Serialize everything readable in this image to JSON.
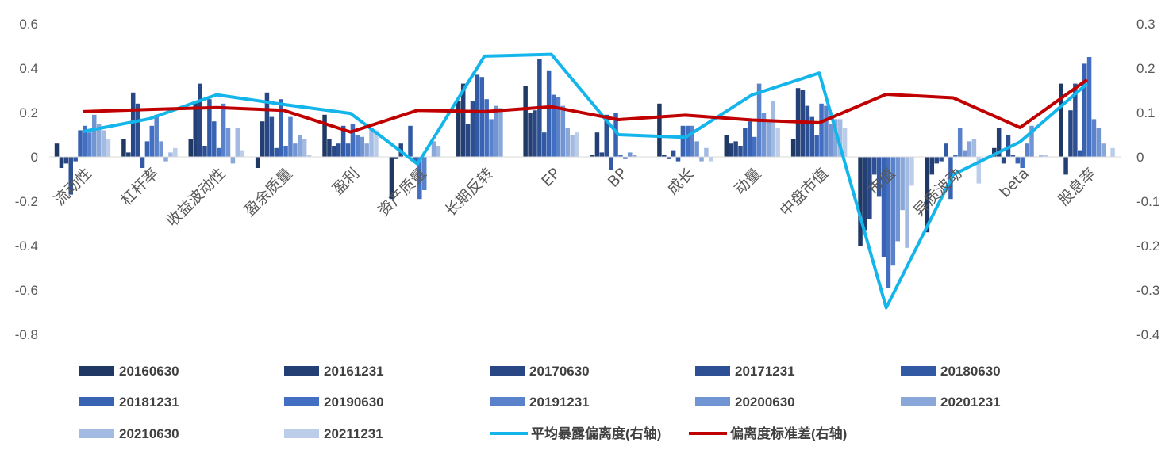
{
  "chart_data": {
    "type": "bar",
    "categories": [
      "流动性",
      "杠杆率",
      "收益波动性",
      "盈余质量",
      "盈利",
      "资产质量",
      "长期反转",
      "EP",
      "BP",
      "成长",
      "动量",
      "中盘市值",
      "市值",
      "异质波动",
      "beta",
      "股息率"
    ],
    "ylim": [
      -0.8,
      0.6
    ],
    "yticks": [
      "0.6",
      "0.4",
      "0.2",
      "0",
      "-0.2",
      "-0.4",
      "-0.6",
      "-0.8"
    ],
    "y2lim": [
      -0.4,
      0.3
    ],
    "y2ticks": [
      "0.3",
      "0.2",
      "0.1",
      "0",
      "-0.1",
      "-0.2",
      "-0.3",
      "-0.4"
    ],
    "grid": false,
    "legend_position": "bottom",
    "series": [
      {
        "name": "20160630",
        "color": "#203864",
        "values": [
          0.06,
          0.08,
          0.08,
          -0.05,
          0.19,
          -0.19,
          0.25,
          0.32,
          0.01,
          0.24,
          0.1,
          0.08,
          -0.4,
          -0.34,
          0.04,
          0.33
        ]
      },
      {
        "name": "20161231",
        "color": "#243F73",
        "values": [
          -0.05,
          0.02,
          0.25,
          0.16,
          0.08,
          -0.01,
          0.33,
          0.2,
          0.11,
          0.01,
          0.06,
          0.31,
          -0.33,
          -0.08,
          0.13,
          -0.08
        ]
      },
      {
        "name": "20170630",
        "color": "#284784",
        "values": [
          -0.03,
          0.29,
          0.33,
          0.29,
          0.05,
          0.06,
          0.15,
          0.21,
          0.02,
          -0.01,
          0.07,
          0.3,
          -0.28,
          -0.03,
          -0.03,
          0.21
        ]
      },
      {
        "name": "20171231",
        "color": "#2D5094",
        "values": [
          -0.17,
          0.24,
          0.05,
          0.18,
          0.06,
          0.0,
          0.25,
          0.44,
          0.19,
          0.03,
          0.05,
          0.23,
          -0.08,
          -0.02,
          0.1,
          0.33
        ]
      },
      {
        "name": "20180630",
        "color": "#3159A4",
        "values": [
          -0.02,
          -0.05,
          0.26,
          0.04,
          0.14,
          0.14,
          0.37,
          0.11,
          -0.06,
          -0.02,
          0.13,
          0.18,
          -0.18,
          0.06,
          0.01,
          0.03
        ]
      },
      {
        "name": "20181231",
        "color": "#3863B3",
        "values": [
          0.12,
          0.07,
          0.16,
          0.26,
          0.06,
          -0.02,
          0.36,
          0.39,
          0.2,
          0.14,
          0.16,
          0.1,
          -0.45,
          -0.19,
          -0.03,
          0.42
        ]
      },
      {
        "name": "20190630",
        "color": "#426FC1",
        "values": [
          0.14,
          0.14,
          0.04,
          0.05,
          0.15,
          -0.19,
          0.26,
          0.28,
          0.01,
          0.14,
          0.09,
          0.24,
          -0.59,
          0.01,
          -0.05,
          0.45
        ]
      },
      {
        "name": "20191231",
        "color": "#5A82CA",
        "values": [
          0.11,
          0.19,
          0.24,
          0.18,
          0.1,
          -0.15,
          0.17,
          0.27,
          -0.01,
          0.14,
          0.33,
          0.23,
          -0.49,
          0.13,
          0.06,
          0.17
        ]
      },
      {
        "name": "20200630",
        "color": "#7194D2",
        "values": [
          0.19,
          0.07,
          0.13,
          0.06,
          0.09,
          0.0,
          0.23,
          0.23,
          0.02,
          0.07,
          0.2,
          0.15,
          -0.38,
          0.03,
          0.14,
          0.13
        ]
      },
      {
        "name": "20201231",
        "color": "#8AA7DA",
        "values": [
          0.15,
          -0.02,
          -0.03,
          0.1,
          0.06,
          0.07,
          0.22,
          0.13,
          0.01,
          -0.02,
          0.17,
          0.17,
          -0.24,
          0.07,
          0.0,
          0.06
        ]
      },
      {
        "name": "20210630",
        "color": "#A3BAE2",
        "values": [
          0.12,
          0.02,
          0.13,
          0.08,
          0.13,
          0.05,
          0.0,
          0.1,
          0.0,
          0.04,
          0.25,
          0.17,
          -0.41,
          0.08,
          0.01,
          0.0
        ]
      },
      {
        "name": "20211231",
        "color": "#BCCDEA",
        "values": [
          0.08,
          0.04,
          0.03,
          0.01,
          0.12,
          0.0,
          0.0,
          0.11,
          0.0,
          -0.02,
          0.13,
          0.13,
          -0.13,
          -0.12,
          0.01,
          0.04
        ]
      }
    ],
    "line_series": [
      {
        "name": "平均暴露偏离度(右轴)",
        "color": "#13B5EA",
        "axis": "right",
        "values": [
          0.057,
          0.086,
          0.14,
          0.118,
          0.098,
          -0.016,
          0.227,
          0.231,
          0.05,
          0.044,
          0.14,
          0.189,
          -0.34,
          -0.04,
          0.034,
          0.165
        ]
      },
      {
        "name": "偏离度标准差(右轴)",
        "color": "#C00000",
        "axis": "right",
        "values": [
          0.102,
          0.107,
          0.111,
          0.105,
          0.056,
          0.105,
          0.102,
          0.113,
          0.084,
          0.094,
          0.083,
          0.077,
          0.141,
          0.133,
          0.066,
          0.174
        ]
      }
    ]
  }
}
